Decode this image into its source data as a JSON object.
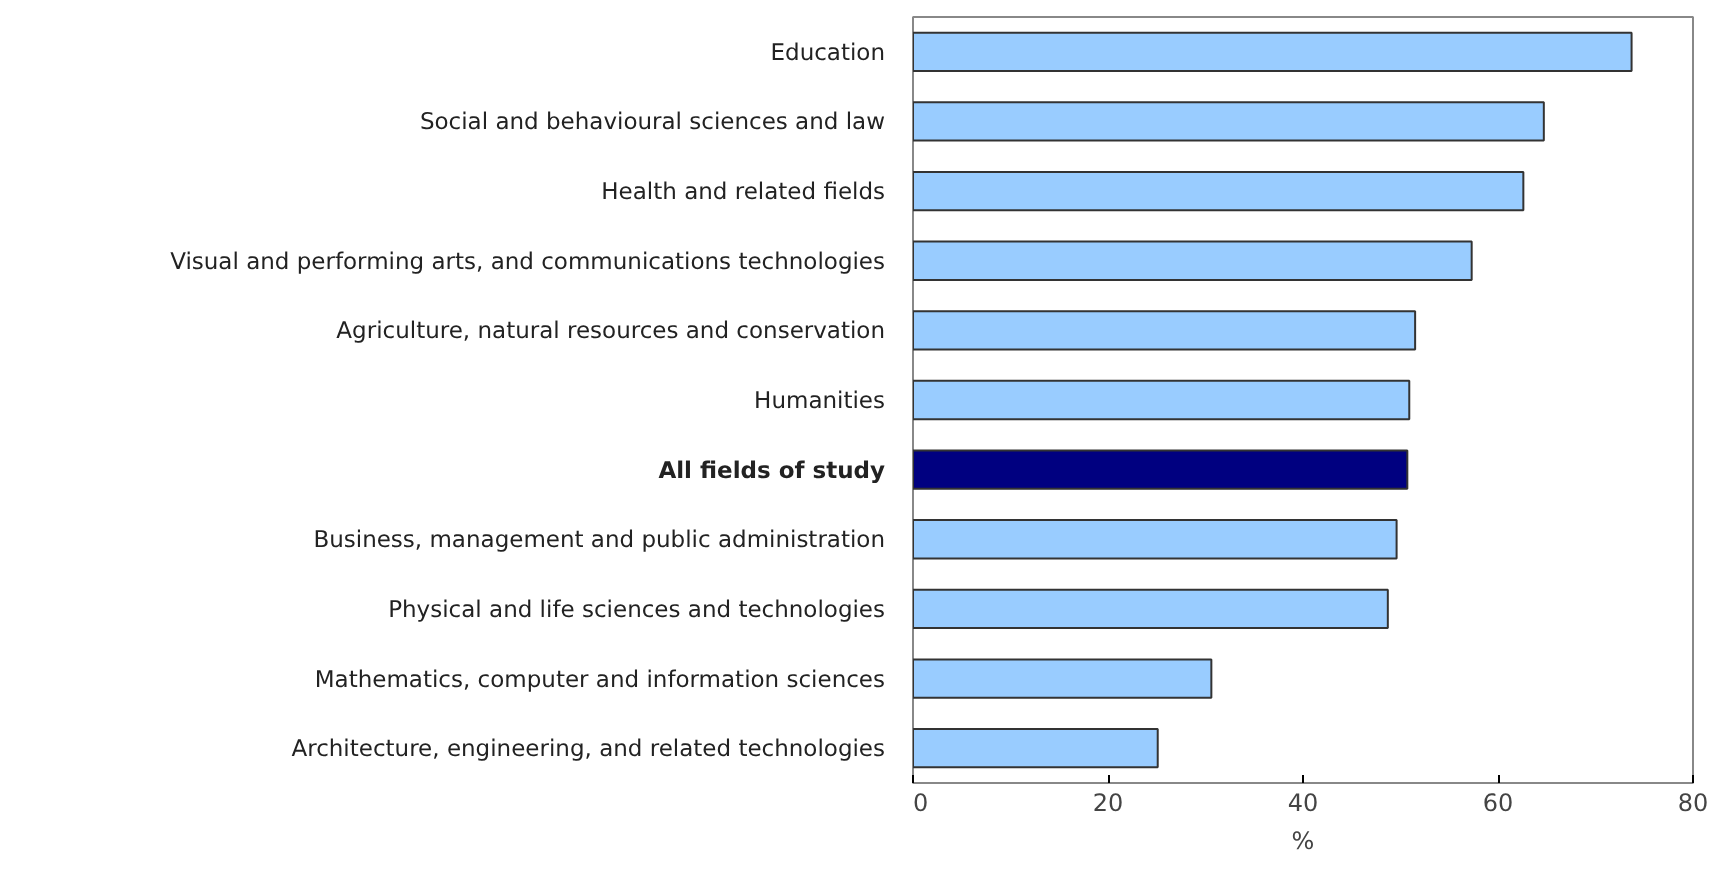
{
  "chart_data": {
    "type": "bar",
    "orientation": "horizontal",
    "xlabel": "%",
    "categories": [
      "Education",
      "Social and behavioural sciences and law",
      "Health and related fields",
      "Visual and performing arts, and communications technologies",
      "Agriculture, natural resources and conservation",
      "Humanities",
      "All fields of study",
      "Business, management and public administration",
      "Physical and life sciences and technologies",
      "Mathematics, computer and information sciences",
      "Architecture, engineering, and related technologies"
    ],
    "values": [
      73.7,
      64.7,
      62.6,
      57.3,
      51.5,
      50.9,
      50.7,
      49.6,
      48.7,
      30.6,
      25.1
    ],
    "colors": [
      "#99ccff",
      "#99ccff",
      "#99ccff",
      "#99ccff",
      "#99ccff",
      "#99ccff",
      "#000080",
      "#99ccff",
      "#99ccff",
      "#99ccff",
      "#99ccff"
    ],
    "xlim": [
      0,
      80
    ],
    "xticks": [
      0,
      20,
      40,
      60,
      80
    ],
    "grid": false
  }
}
